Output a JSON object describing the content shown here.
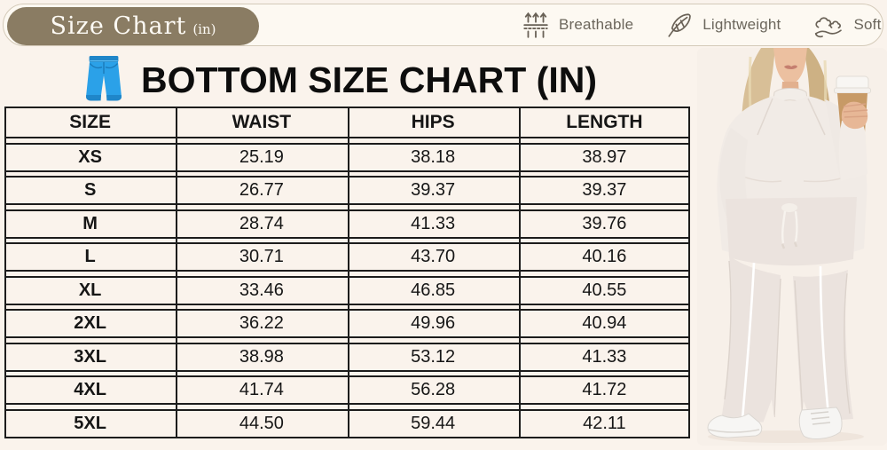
{
  "header": {
    "badge": {
      "title": "Size Chart",
      "unit": "(in)"
    },
    "features": [
      {
        "icon": "breathable-icon",
        "label": "Breathable"
      },
      {
        "icon": "feather-icon",
        "label": "Lightweight"
      },
      {
        "icon": "cloud-hand-icon",
        "label": "Soft"
      }
    ]
  },
  "main": {
    "title": "BOTTOM SIZE CHART (IN)",
    "title_icon": "jeans-icon"
  },
  "chart_data": {
    "type": "table",
    "title": "BOTTOM SIZE CHART (IN)",
    "columns": [
      "SIZE",
      "WAIST",
      "HIPS",
      "LENGTH"
    ],
    "rows": [
      [
        "XS",
        "25.19",
        "38.18",
        "38.97"
      ],
      [
        "S",
        "26.77",
        "39.37",
        "39.37"
      ],
      [
        "M",
        "28.74",
        "41.33",
        "39.76"
      ],
      [
        "L",
        "30.71",
        "43.70",
        "40.16"
      ],
      [
        "XL",
        "33.46",
        "46.85",
        "40.55"
      ],
      [
        "2XL",
        "36.22",
        "49.96",
        "40.94"
      ],
      [
        "3XL",
        "38.98",
        "53.12",
        "41.33"
      ],
      [
        "4XL",
        "41.74",
        "56.28",
        "41.72"
      ],
      [
        "5XL",
        "44.50",
        "59.44",
        "42.11"
      ]
    ]
  },
  "photo": {
    "alt": "Model in cream two-piece knit lounge set holding a coffee cup"
  },
  "colors": {
    "page_bg": "#faf3ec",
    "band_bg": "#fdf9f2",
    "badge_bg": "#8a7c63",
    "table_border": "#1c1c1c",
    "jeans_blue": "#2ba1e8",
    "icon_stroke": "#6a6257"
  }
}
